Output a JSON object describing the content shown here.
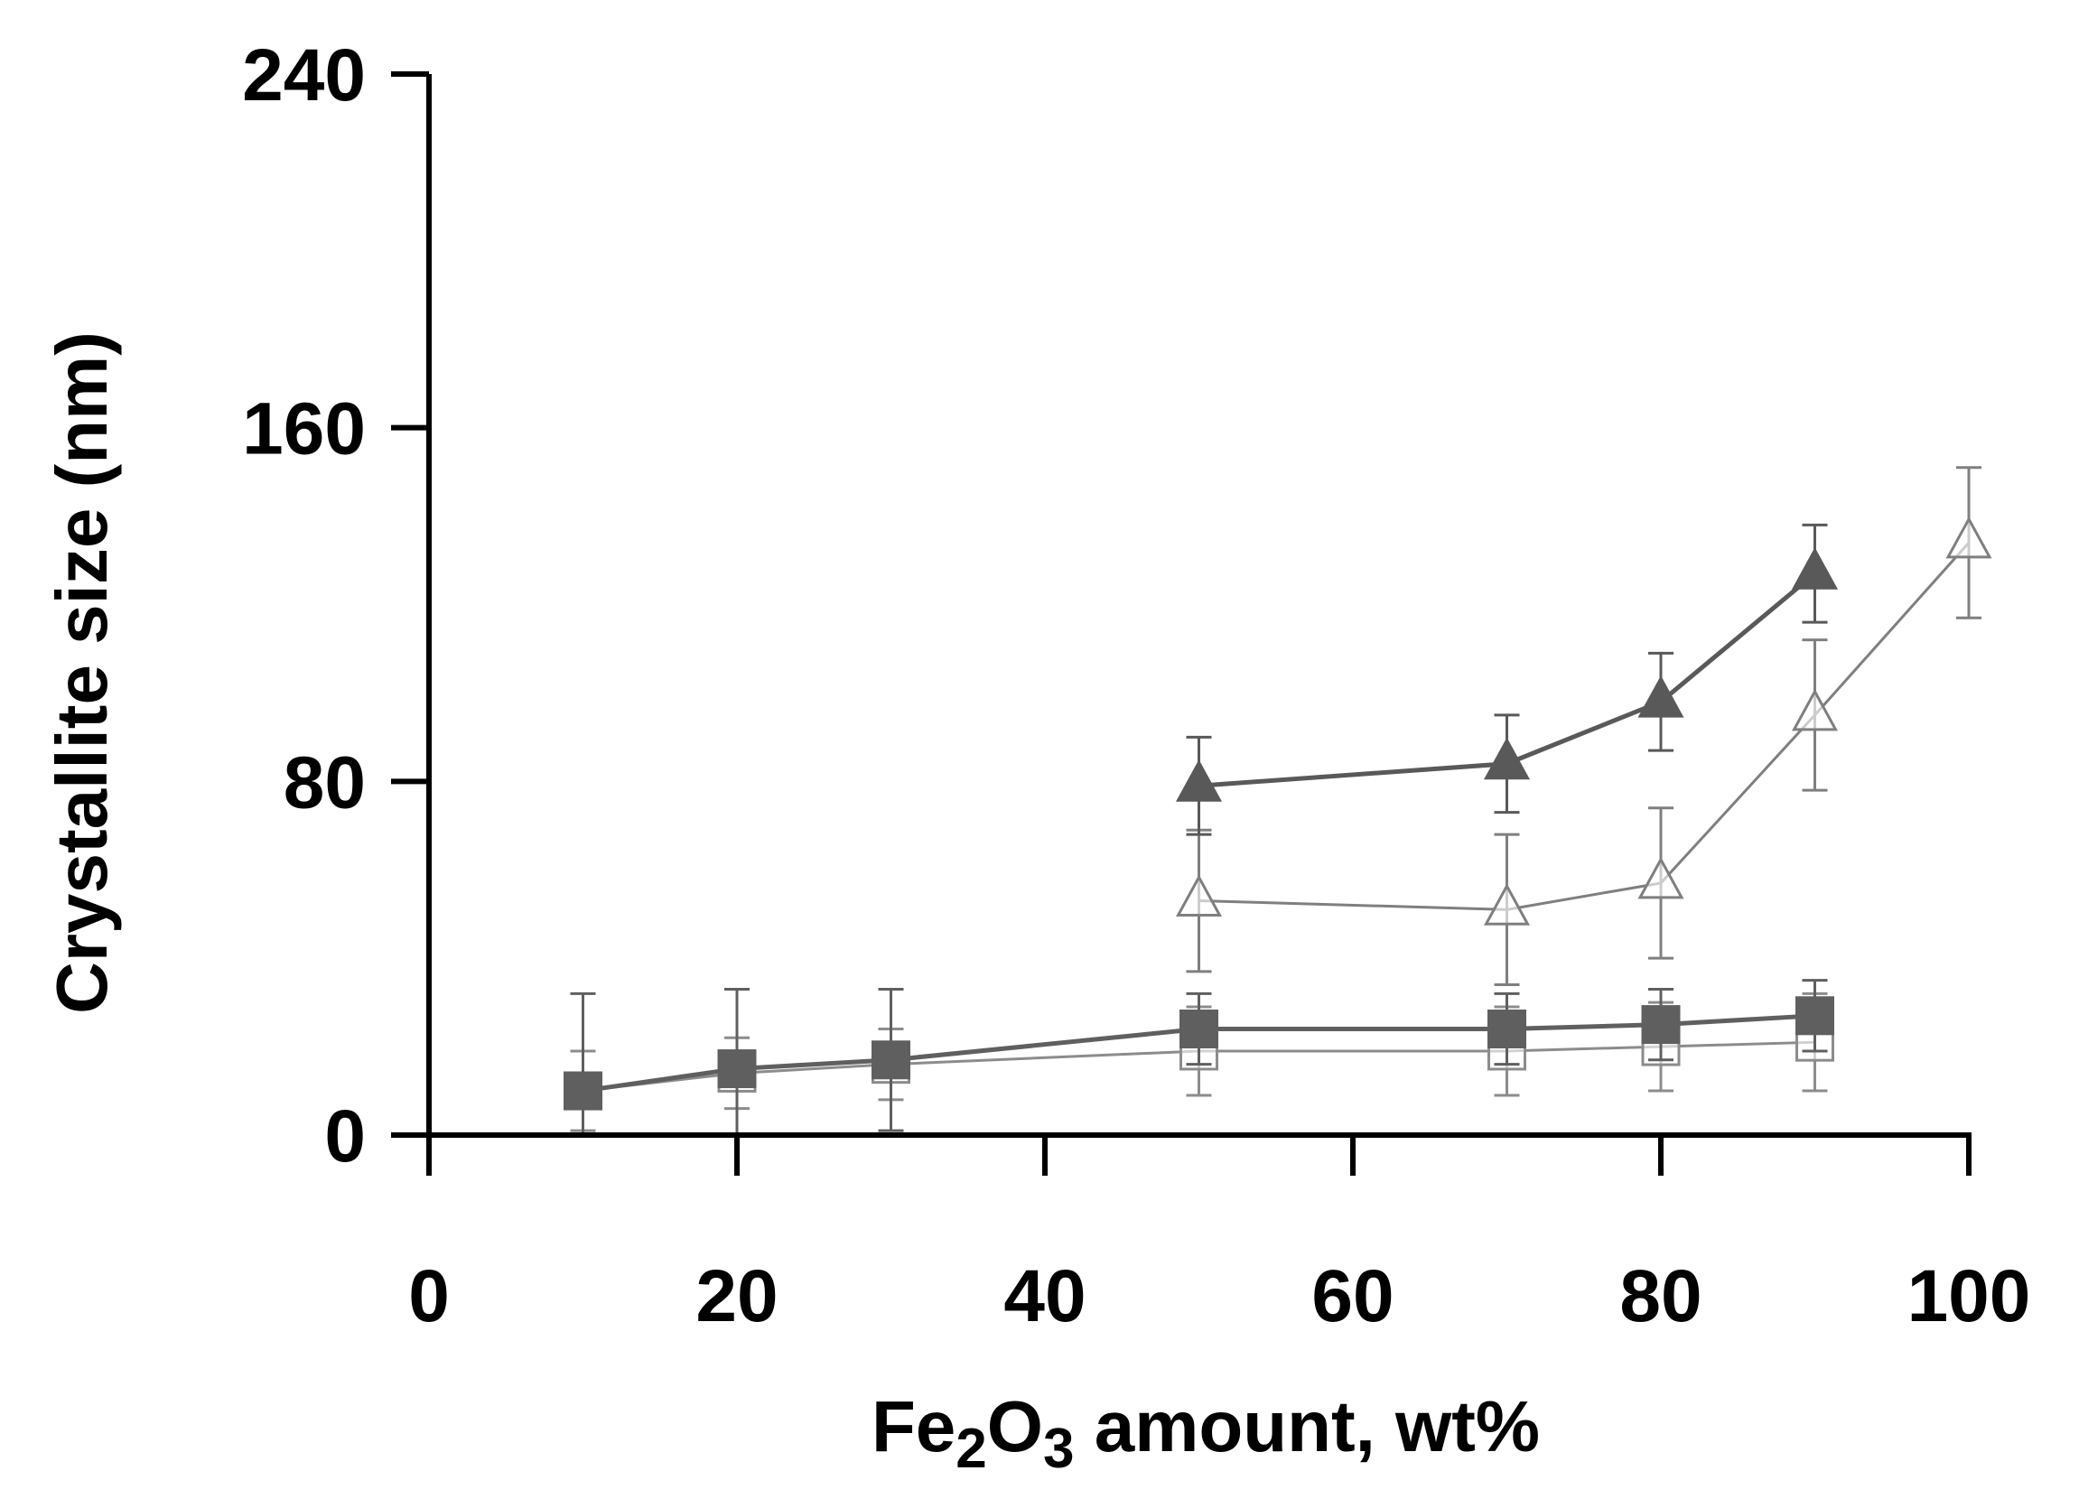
{
  "chart_data": {
    "type": "line",
    "title": "",
    "xlabel": {
      "prefix": "Fe",
      "sub1": "2",
      "middle": "O",
      "sub2": "3",
      "suffix": " amount, wt%"
    },
    "ylabel": "Crystallite size (nm)",
    "xlim": [
      0,
      100
    ],
    "ylim": [
      0,
      240
    ],
    "xticks": [
      0,
      20,
      40,
      60,
      80,
      100
    ],
    "yticks": [
      0,
      80,
      160,
      240
    ],
    "xtick_labels": [
      "0",
      "20",
      "40",
      "60",
      "80",
      "100"
    ],
    "ytick_labels": [
      "0",
      "80",
      "160",
      "240"
    ],
    "grid": false,
    "legend": "none",
    "series": [
      {
        "name": "filled triangles",
        "marker": "triangle-filled",
        "color": "#595959",
        "x": [
          50,
          70,
          80,
          90
        ],
        "y": [
          79,
          84,
          98,
          127
        ],
        "err": [
          11,
          11,
          11,
          11
        ]
      },
      {
        "name": "open triangles",
        "marker": "triangle-open",
        "color": "#7f7f7f",
        "x": [
          50,
          70,
          80,
          90,
          100
        ],
        "y": [
          53,
          51,
          57,
          95,
          134
        ],
        "err": [
          16,
          17,
          17,
          17,
          17
        ]
      },
      {
        "name": "filled squares",
        "marker": "square-filled",
        "color": "#5f5f5f",
        "x": [
          10,
          20,
          30,
          50,
          70,
          80,
          90
        ],
        "y": [
          10,
          15,
          17,
          24,
          24,
          25,
          27
        ],
        "err": [
          22,
          18,
          16,
          8,
          8,
          8,
          8
        ]
      },
      {
        "name": "open squares",
        "marker": "square-open",
        "color": "#8c8c8c",
        "x": [
          10,
          20,
          30,
          50,
          70,
          80,
          90
        ],
        "y": [
          10,
          14,
          16,
          19,
          19,
          20,
          21
        ],
        "err": [
          9,
          8,
          8,
          10,
          10,
          10,
          11
        ]
      }
    ]
  }
}
